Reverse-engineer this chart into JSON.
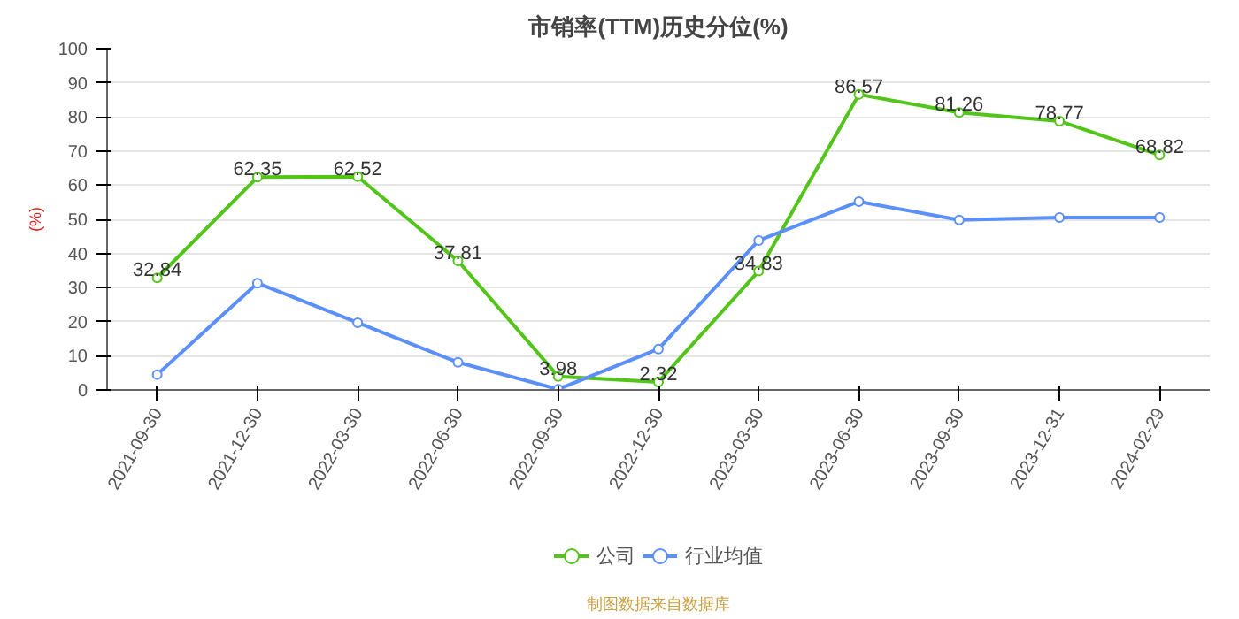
{
  "chart_data": {
    "type": "line",
    "title": "市销率(TTM)历史分位(%)",
    "ylabel": "(%)",
    "categories": [
      "2021-09-30",
      "2021-12-30",
      "2022-03-30",
      "2022-06-30",
      "2022-09-30",
      "2022-12-30",
      "2023-03-30",
      "2023-06-30",
      "2023-09-30",
      "2023-12-31",
      "2024-02-29"
    ],
    "series": [
      {
        "name": "公司",
        "color": "#52c41a",
        "values": [
          32.84,
          62.35,
          62.52,
          37.81,
          3.98,
          2.32,
          34.83,
          86.57,
          81.26,
          78.77,
          68.82
        ],
        "value_labels": [
          "32.84",
          "62.35",
          "62.52",
          "37.81",
          "3.98",
          "2.32",
          "34.83",
          "86.57",
          "81.26",
          "78.77",
          "68.82"
        ]
      },
      {
        "name": "行业均值",
        "color": "#5b8ff9",
        "values": [
          4.5,
          31.3,
          19.7,
          8.1,
          0.2,
          12.0,
          43.8,
          55.2,
          49.8,
          50.5,
          50.5
        ]
      }
    ],
    "ylim": [
      0,
      100
    ],
    "yticks": [
      0,
      10,
      20,
      30,
      40,
      50,
      60,
      70,
      80,
      90,
      100
    ],
    "grid": "y",
    "legend": "bottom",
    "marker": "circle",
    "line_style": "solid",
    "annotations": [
      "制图数据来自数据库"
    ]
  }
}
